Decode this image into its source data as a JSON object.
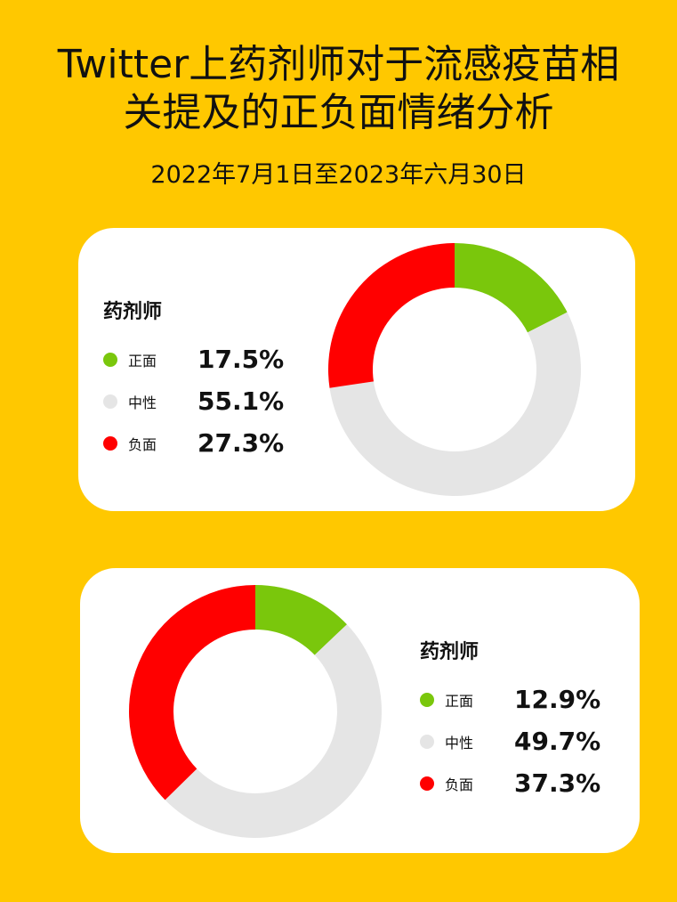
{
  "header": {
    "title_line1": "Twitter上药剂师对于流感疫苗相",
    "title_line2": "关提及的正负面情绪分析",
    "subtitle": "2022年7月1日至2023年六月30日"
  },
  "colors": {
    "background": "#FFC800",
    "positive": "#7AC70C",
    "neutral": "#E5E5E5",
    "negative": "#FF0000"
  },
  "chart_data": [
    {
      "type": "pie",
      "donut": true,
      "title": "药剂师",
      "categories": [
        "正面",
        "中性",
        "负面"
      ],
      "values": [
        17.5,
        55.1,
        27.3
      ],
      "value_labels": [
        "17.5%",
        "55.1%",
        "27.3%"
      ],
      "colors": [
        "#7AC70C",
        "#E5E5E5",
        "#FF0000"
      ],
      "legend_position": "left"
    },
    {
      "type": "pie",
      "donut": true,
      "title": "药剂师",
      "categories": [
        "正面",
        "中性",
        "负面"
      ],
      "values": [
        12.9,
        49.7,
        37.3
      ],
      "value_labels": [
        "12.9%",
        "49.7%",
        "37.3%"
      ],
      "colors": [
        "#7AC70C",
        "#E5E5E5",
        "#FF0000"
      ],
      "legend_position": "right"
    }
  ]
}
